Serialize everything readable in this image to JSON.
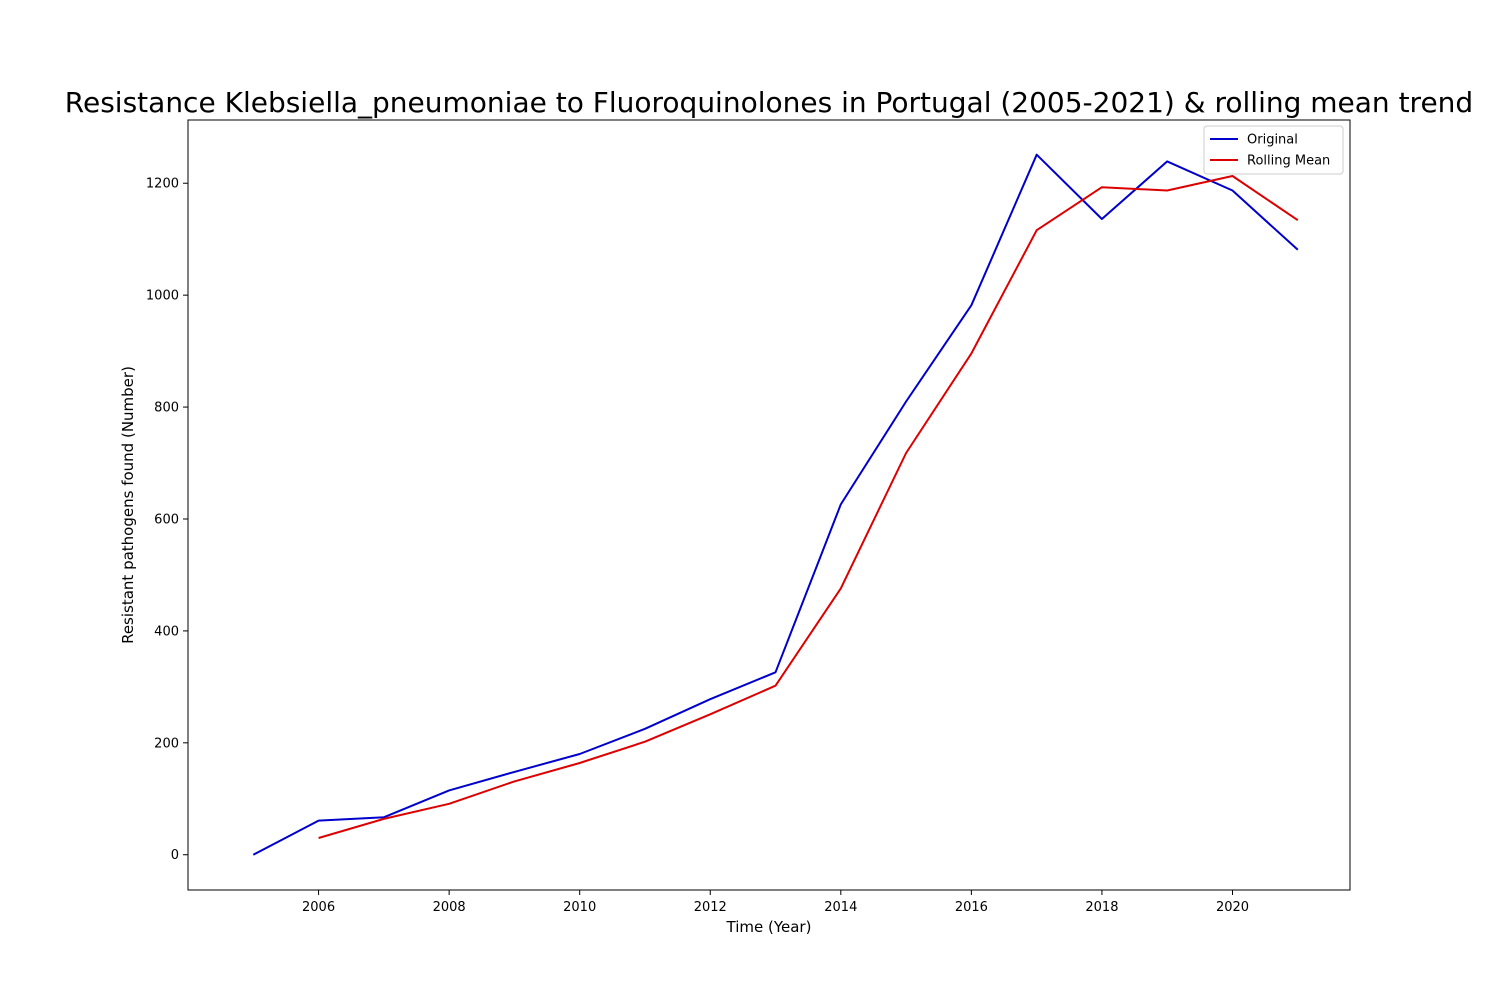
{
  "chart_data": {
    "type": "line",
    "title": "Resistance Klebsiella_pneumoniae to Fluoroquinolones in Portugal (2005-2021) & rolling mean trend",
    "xlabel": "Time (Year)",
    "ylabel": "Resistant pathogens found (Number)",
    "xlim": [
      2004.0,
      2021.8
    ],
    "ylim": [
      -63,
      1313
    ],
    "xticks": [
      2006,
      2008,
      2010,
      2012,
      2014,
      2016,
      2018,
      2020
    ],
    "yticks": [
      0,
      200,
      400,
      600,
      800,
      1000,
      1200
    ],
    "grid": false,
    "legend_position": "top-right",
    "series": [
      {
        "name": "Original",
        "color": "#0000cc",
        "x": [
          2005,
          2006,
          2007,
          2008,
          2009,
          2010,
          2011,
          2012,
          2013,
          2014,
          2015,
          2016,
          2017,
          2018,
          2019,
          2020,
          2021
        ],
        "values": [
          0,
          61,
          67,
          115,
          148,
          180,
          225,
          278,
          326,
          626,
          810,
          982,
          1251,
          1136,
          1239,
          1187,
          1081
        ]
      },
      {
        "name": "Rolling Mean",
        "color": "#dd0000",
        "x": [
          2006,
          2007,
          2008,
          2009,
          2010,
          2011,
          2012,
          2013,
          2014,
          2015,
          2016,
          2017,
          2018,
          2019,
          2020,
          2021
        ],
        "values": [
          30,
          64,
          91,
          131,
          164,
          202,
          251,
          302,
          476,
          718,
          896,
          1116,
          1193,
          1187,
          1213,
          1134
        ]
      }
    ]
  }
}
